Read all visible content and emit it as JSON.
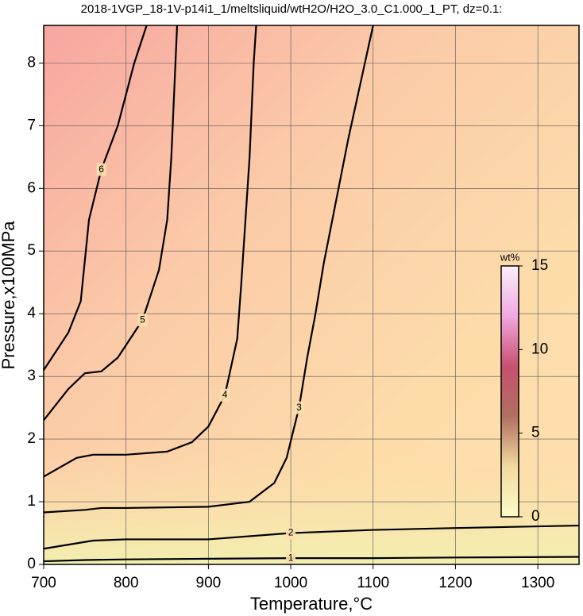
{
  "chart_data": {
    "type": "contour",
    "title": "2018-1VGP_18-1V-p14i1_1/meltsliquid/wtH2O/H2O_3.0_C1.000_1_PT, dz=0.1:",
    "x_label": "Temperature,°C",
    "y_label": "Pressure,x100MPa",
    "xlim": [
      700,
      1350
    ],
    "ylim": [
      0,
      8.6
    ],
    "xticks": [
      700,
      800,
      900,
      1000,
      1100,
      1200,
      1300
    ],
    "yticks": [
      0,
      1,
      2,
      3,
      4,
      5,
      6,
      7,
      8
    ],
    "grid": true,
    "contours": [
      {
        "level": 1,
        "x": [
          700,
          750,
          800,
          900,
          1000,
          1100,
          1200,
          1350
        ],
        "y": [
          0.05,
          0.07,
          0.08,
          0.09,
          0.1,
          0.1,
          0.11,
          0.12
        ]
      },
      {
        "level": 2,
        "x": [
          700,
          760,
          800,
          900,
          1000,
          1100,
          1200,
          1350
        ],
        "y": [
          0.25,
          0.38,
          0.4,
          0.4,
          0.5,
          0.55,
          0.58,
          0.62
        ]
      },
      {
        "level": 3,
        "x": [
          700,
          750,
          770,
          800,
          900,
          950,
          980,
          995,
          1010,
          1020,
          1030,
          1040,
          1055,
          1070,
          1085,
          1100
        ],
        "y": [
          0.83,
          0.87,
          0.9,
          0.9,
          0.92,
          1.0,
          1.3,
          1.7,
          2.5,
          3.3,
          4.0,
          4.8,
          5.8,
          6.8,
          7.7,
          8.6
        ]
      },
      {
        "level": 4,
        "x": [
          700,
          740,
          760,
          800,
          850,
          880,
          900,
          920,
          935,
          940,
          945,
          950,
          955,
          958
        ],
        "y": [
          1.4,
          1.7,
          1.75,
          1.75,
          1.8,
          1.95,
          2.2,
          2.7,
          3.6,
          4.5,
          5.5,
          6.5,
          8.0,
          8.6
        ]
      },
      {
        "level": 5,
        "x": [
          700,
          730,
          750,
          770,
          790,
          820,
          840,
          850,
          855,
          860,
          862
        ],
        "y": [
          2.3,
          2.8,
          3.05,
          3.08,
          3.3,
          3.9,
          4.7,
          5.5,
          6.5,
          8.0,
          8.6
        ]
      },
      {
        "level": 6,
        "x": [
          700,
          730,
          745,
          755,
          770,
          790,
          810,
          825
        ],
        "y": [
          3.1,
          3.7,
          4.2,
          5.5,
          6.3,
          7.0,
          8.0,
          8.6
        ]
      }
    ],
    "colorbar": {
      "label": "wt%",
      "lim": [
        0,
        15
      ],
      "ticks": [
        0,
        5,
        10,
        15
      ]
    }
  }
}
